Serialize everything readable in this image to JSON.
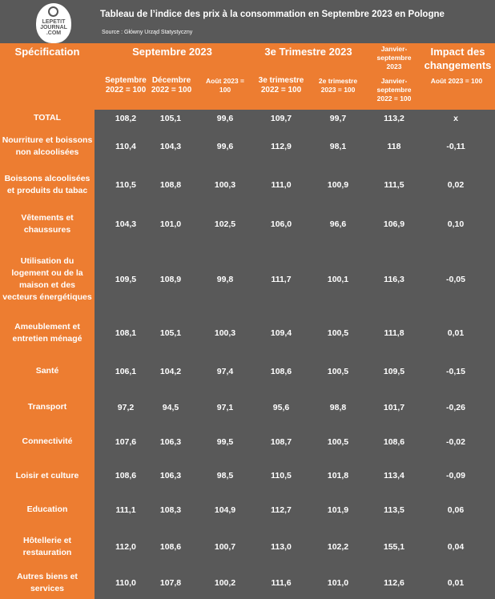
{
  "header": {
    "title": "Tableau de l’indice des prix à la consommation en Septembre 2023 en Pologne",
    "source": "Source : Główny Urząd Statystyczny",
    "logo_text": "LEPETIT JOURNAL .COM"
  },
  "columns": {
    "spec": "Spécification",
    "sept2023": "Septembre 2023",
    "q3": "3e Trimestre 2023",
    "janv_sept_2023": "Janvier-septembre 2023",
    "impact": "Impact des changements",
    "sub": [
      "Septembre 2022 = 100",
      "Décembre 2022 = 100",
      "Août 2023 = 100",
      "3e trimestre 2022 = 100",
      "2e trimestre 2023 = 100",
      "Janvier-septembre 2022 = 100",
      "Août 2023 = 100"
    ]
  },
  "colors": {
    "orange": "#ed7d31",
    "gray": "#595959"
  },
  "rows": [
    {
      "label": "TOTAL",
      "values": [
        "108,2",
        "105,1",
        "99,6",
        "109,7",
        "99,7",
        "113,2",
        "x"
      ]
    },
    {
      "label": "Nourriture et boissons non alcoolisées",
      "values": [
        "110,4",
        "104,3",
        "99,6",
        "112,9",
        "98,1",
        "118",
        "-0,11"
      ]
    },
    {
      "label": "Boissons alcoolisées et produits du tabac",
      "values": [
        "110,5",
        "108,8",
        "100,3",
        "111,0",
        "100,9",
        "111,5",
        "0,02"
      ]
    },
    {
      "label": "Vêtements et chaussures",
      "values": [
        "104,3",
        "101,0",
        "102,5",
        "106,0",
        "96,6",
        "106,9",
        "0,10"
      ]
    },
    {
      "label": "Utilisation du logement ou de la maison et des vecteurs énergétiques",
      "values": [
        "109,5",
        "108,9",
        "99,8",
        "111,7",
        "100,1",
        "116,3",
        "-0,05"
      ]
    },
    {
      "label": "Ameublement et entretien ménagé",
      "values": [
        "108,1",
        "105,1",
        "100,3",
        "109,4",
        "100,5",
        "111,8",
        "0,01"
      ]
    },
    {
      "label": "Santé",
      "values": [
        "106,1",
        "104,2",
        "97,4",
        "108,6",
        "100,5",
        "109,5",
        "-0,15"
      ]
    },
    {
      "label": "Transport",
      "values": [
        "97,2",
        "94,5",
        "97,1",
        "95,6",
        "98,8",
        "101,7",
        "-0,26"
      ]
    },
    {
      "label": "Connectivité",
      "values": [
        "107,6",
        "106,3",
        "99,5",
        "108,7",
        "100,5",
        "108,6",
        "-0,02"
      ]
    },
    {
      "label": "Loisir et culture",
      "values": [
        "108,6",
        "106,3",
        "98,5",
        "110,5",
        "101,8",
        "113,4",
        "-0,09"
      ]
    },
    {
      "label": "Education",
      "values": [
        "111,1",
        "108,3",
        "104,9",
        "112,7",
        "101,9",
        "113,5",
        "0,06"
      ]
    },
    {
      "label": "Hôtellerie et restauration",
      "values": [
        "112,0",
        "108,6",
        "100,7",
        "113,0",
        "102,2",
        "155,1",
        "0,04"
      ]
    },
    {
      "label": "Autres biens et services",
      "values": [
        "110,0",
        "107,8",
        "100,2",
        "111,6",
        "101,0",
        "112,6",
        "0,01"
      ]
    }
  ]
}
